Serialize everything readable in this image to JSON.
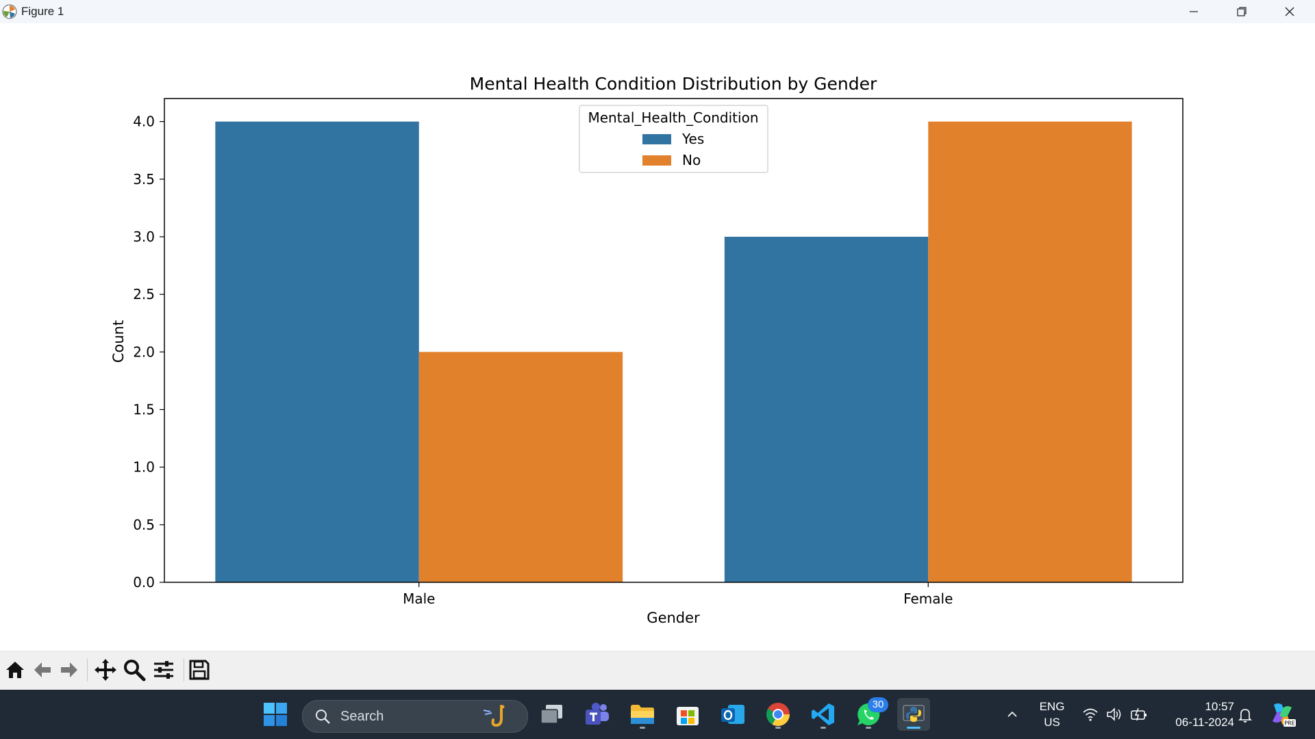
{
  "window": {
    "title": "Figure 1"
  },
  "chart_data": {
    "type": "bar",
    "title": "Mental Health Condition Distribution by Gender",
    "xlabel": "Gender",
    "ylabel": "Count",
    "categories": [
      "Male",
      "Female"
    ],
    "series": [
      {
        "name": "Yes",
        "values": [
          4,
          3
        ],
        "color": "#3274a1"
      },
      {
        "name": "No",
        "values": [
          2,
          4
        ],
        "color": "#e1812c"
      }
    ],
    "ylim": [
      0,
      4.2
    ],
    "yticks": [
      "0.0",
      "0.5",
      "1.0",
      "1.5",
      "2.0",
      "2.5",
      "3.0",
      "3.5",
      "4.0"
    ],
    "legend": {
      "title": "Mental_Health_Condition",
      "placement": "top-center"
    },
    "grid": false
  },
  "toolbar": {
    "icons": [
      "home-icon",
      "back-arrow-icon",
      "forward-arrow-icon",
      "pan-icon",
      "zoom-icon",
      "configure-subplots-icon",
      "save-icon"
    ]
  },
  "taskbar": {
    "search_label": "Search",
    "whatsapp_badge": "30",
    "lang_line1": "ENG",
    "lang_line2": "US",
    "time": "10:57",
    "date": "06-11-2024"
  }
}
